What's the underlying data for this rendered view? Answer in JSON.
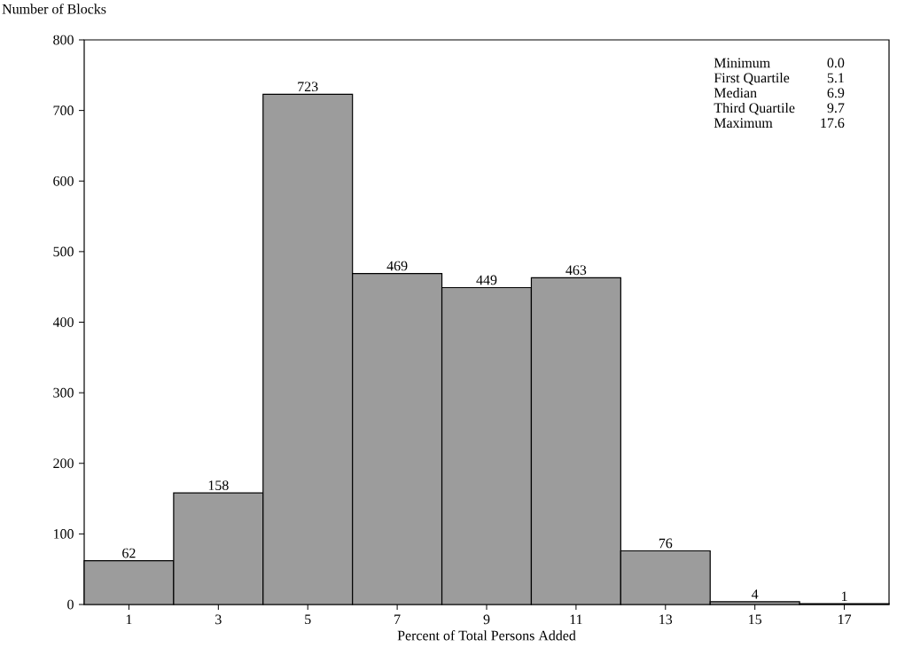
{
  "chart_data": {
    "type": "histogram",
    "xlabel": "Percent of Total Persons Added",
    "ylabel": "Number of Blocks",
    "bins": [
      0,
      2,
      4,
      6,
      8,
      10,
      12,
      14,
      16,
      18
    ],
    "values": [
      62,
      158,
      723,
      469,
      449,
      463,
      76,
      4,
      1
    ],
    "color": "#9c9c9c",
    "data_labels": true,
    "xlim": [
      0,
      18
    ],
    "ylim": [
      0,
      800
    ],
    "xticks": [
      1,
      3,
      5,
      7,
      9,
      11,
      13,
      15,
      17
    ],
    "yticks": [
      0,
      100,
      200,
      300,
      400,
      500,
      600,
      700,
      800
    ],
    "annotations": [
      "Minimum",
      "0.0",
      "First Quartile",
      "5.1",
      "Median",
      "6.9",
      "Third Quartile",
      "9.7",
      "Maximum",
      "17.6"
    ]
  }
}
